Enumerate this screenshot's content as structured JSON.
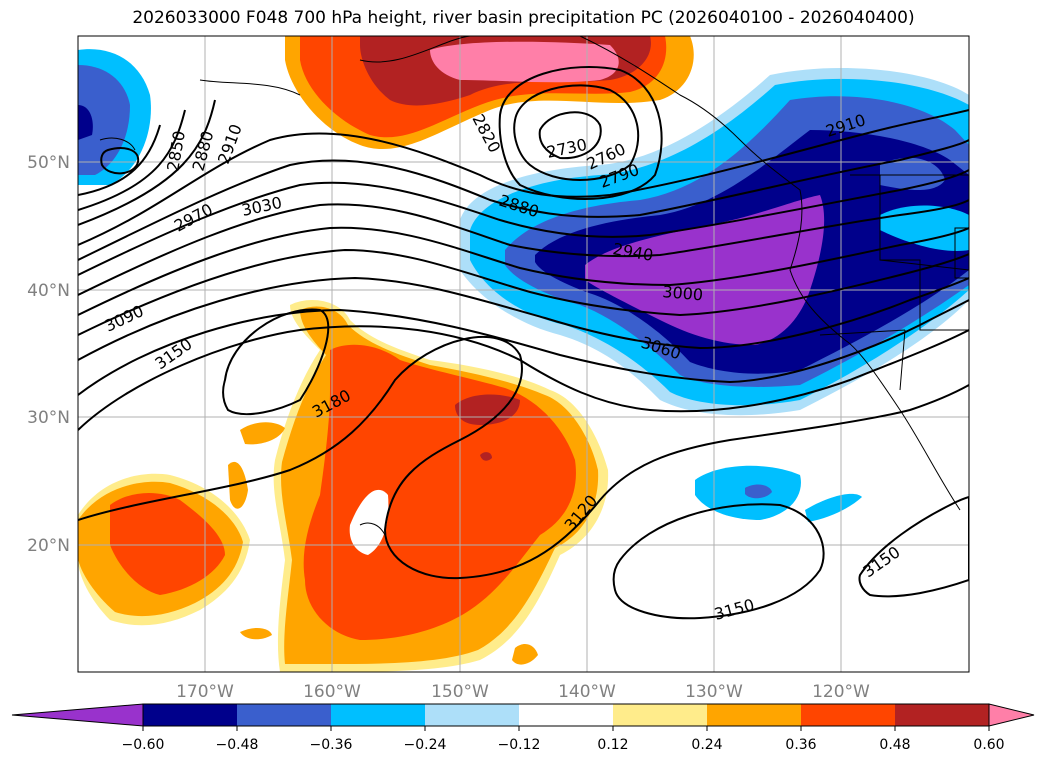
{
  "title": "2026033000 F048 700 hPa height, river basin precipitation PC (2026040100 - 2026040400)",
  "map": {
    "lon_labels": [
      "170°W",
      "160°W",
      "150°W",
      "140°W",
      "130°W",
      "120°W"
    ],
    "lat_labels": [
      "50°N",
      "40°N",
      "30°N",
      "20°N"
    ],
    "contour_labels": [
      "2850",
      "2880",
      "2910",
      "2970",
      "3030",
      "3090",
      "3150",
      "3180",
      "2820",
      "2730",
      "2760",
      "2790",
      "2880",
      "2940",
      "3000",
      "3060",
      "2910",
      "3120",
      "3150",
      "3150"
    ]
  },
  "colorbar": {
    "ticks": [
      "−0.60",
      "−0.48",
      "−0.36",
      "−0.24",
      "−0.12",
      "0.12",
      "0.24",
      "0.36",
      "0.48",
      "0.60"
    ],
    "colors": [
      "#9932CC",
      "#00008B",
      "#3A5FCD",
      "#00BFFF",
      "#ADDFF9",
      "#FFFFFF",
      "#FFEC8B",
      "#FFA500",
      "#FF4500",
      "#B22222",
      "#FF7FA8"
    ]
  }
}
